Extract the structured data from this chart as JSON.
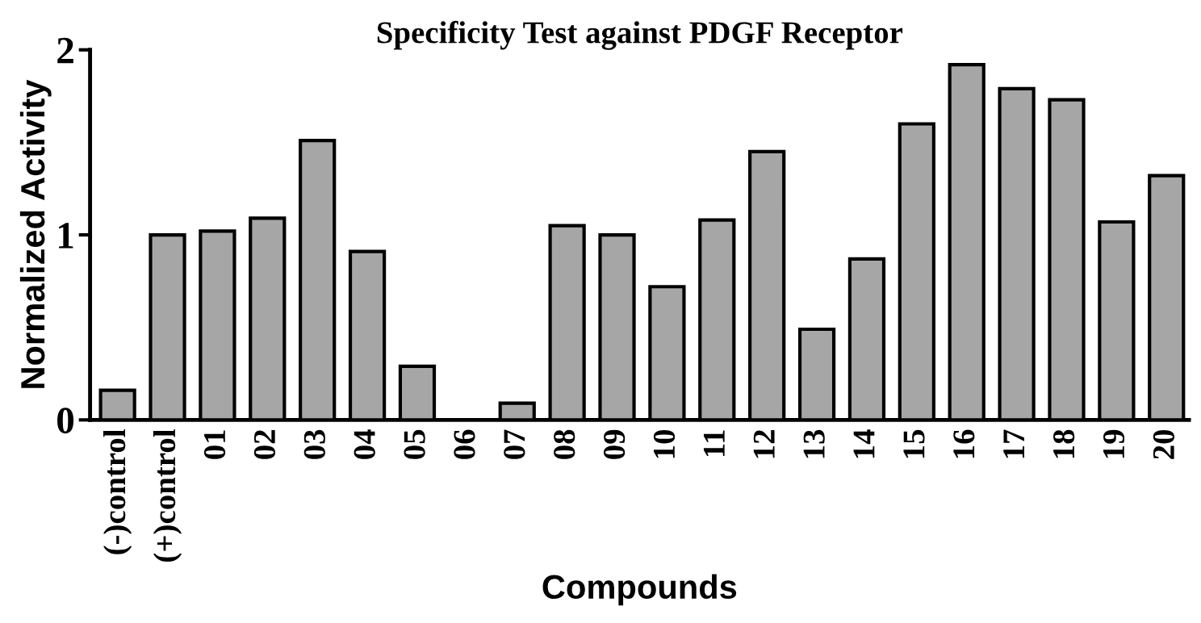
{
  "chart_data": {
    "type": "bar",
    "title": "Specificity Test against PDGF Receptor",
    "xlabel": "Compounds",
    "ylabel": "Normalized Activity",
    "categories": [
      "(-)control",
      "(+)control",
      "01",
      "02",
      "03",
      "04",
      "05",
      "06",
      "07",
      "08",
      "09",
      "10",
      "11",
      "12",
      "13",
      "14",
      "15",
      "16",
      "17",
      "18",
      "19",
      "20"
    ],
    "values": [
      0.16,
      1.0,
      1.02,
      1.09,
      1.51,
      0.91,
      0.29,
      null,
      0.09,
      1.05,
      1.0,
      0.72,
      1.08,
      1.45,
      0.49,
      0.87,
      1.6,
      1.92,
      1.79,
      1.73,
      1.07,
      1.32
    ],
    "color": "#a6a6a6",
    "ylim": [
      0,
      2
    ],
    "yticks": [
      0,
      1,
      2
    ],
    "grid": false,
    "legend": false
  }
}
